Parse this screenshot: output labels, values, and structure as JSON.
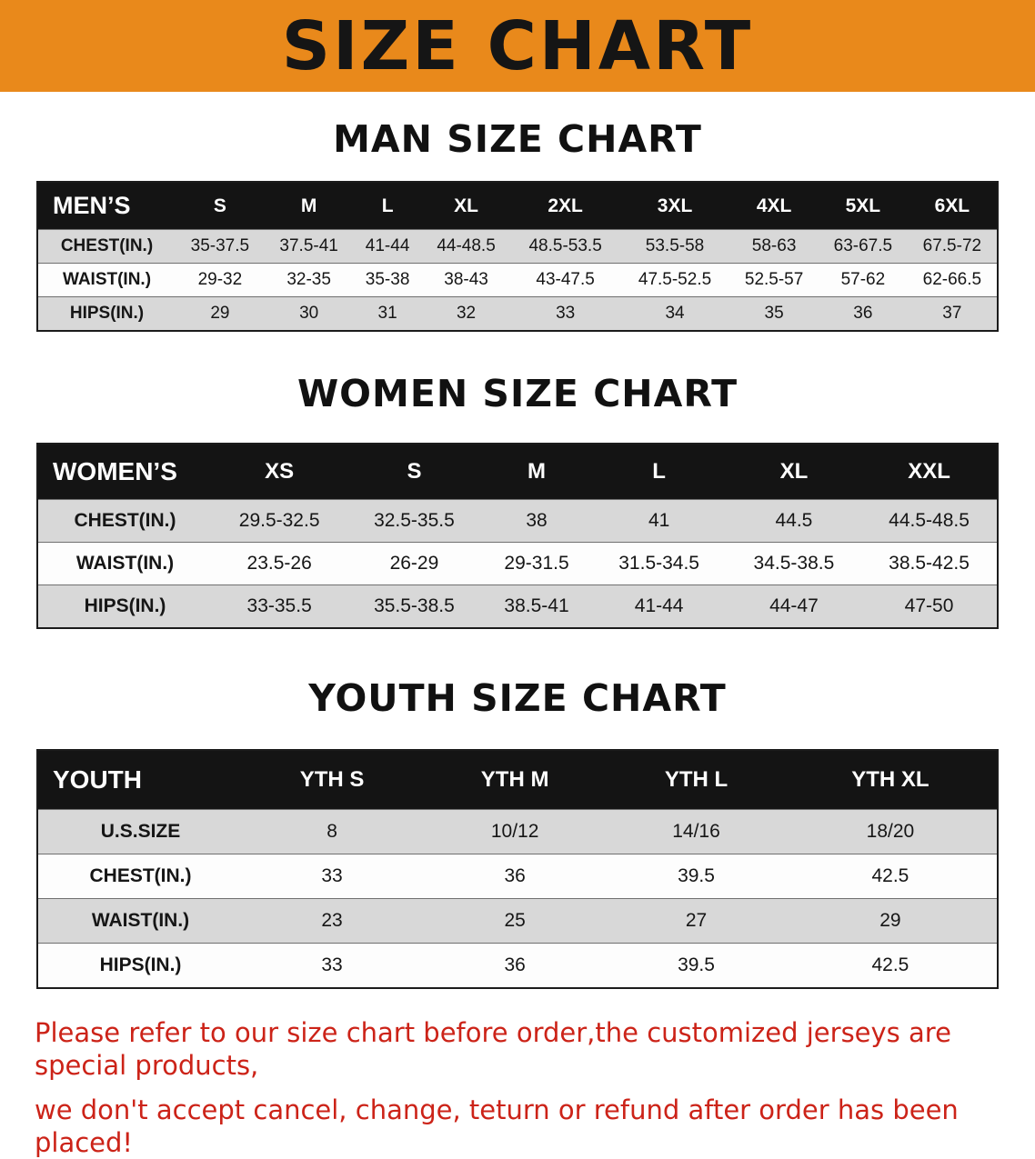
{
  "colors": {
    "banner_bg": "#e9891b",
    "table_header_bg": "#141414",
    "table_header_text": "#ffffff",
    "row_stripe": "#d8d8d8",
    "notice_text": "#cc2318"
  },
  "banner": {
    "title": "SIZE CHART"
  },
  "sections": [
    {
      "id": "men",
      "heading": "MAN SIZE CHART",
      "corner": "MEN’S",
      "columns": [
        "S",
        "M",
        "L",
        "XL",
        "2XL",
        "3XL",
        "4XL",
        "5XL",
        "6XL"
      ],
      "rows": [
        {
          "label": "CHEST(IN.)",
          "values": [
            "35-37.5",
            "37.5-41",
            "41-44",
            "44-48.5",
            "48.5-53.5",
            "53.5-58",
            "58-63",
            "63-67.5",
            "67.5-72"
          ]
        },
        {
          "label": "WAIST(IN.)",
          "values": [
            "29-32",
            "32-35",
            "35-38",
            "38-43",
            "43-47.5",
            "47.5-52.5",
            "52.5-57",
            "57-62",
            "62-66.5"
          ]
        },
        {
          "label": "HIPS(IN.)",
          "values": [
            "29",
            "30",
            "31",
            "32",
            "33",
            "34",
            "35",
            "36",
            "37"
          ]
        }
      ]
    },
    {
      "id": "women",
      "heading": "WOMEN SIZE CHART",
      "corner": "WOMEN’S",
      "columns": [
        "XS",
        "S",
        "M",
        "L",
        "XL",
        "XXL"
      ],
      "rows": [
        {
          "label": "CHEST(IN.)",
          "values": [
            "29.5-32.5",
            "32.5-35.5",
            "38",
            "41",
            "44.5",
            "44.5-48.5"
          ]
        },
        {
          "label": "WAIST(IN.)",
          "values": [
            "23.5-26",
            "26-29",
            "29-31.5",
            "31.5-34.5",
            "34.5-38.5",
            "38.5-42.5"
          ]
        },
        {
          "label": "HIPS(IN.)",
          "values": [
            "33-35.5",
            "35.5-38.5",
            "38.5-41",
            "41-44",
            "44-47",
            "47-50"
          ]
        }
      ]
    },
    {
      "id": "youth",
      "heading": "YOUTH SIZE CHART",
      "corner": "YOUTH",
      "columns": [
        "YTH S",
        "YTH M",
        "YTH L",
        "YTH XL"
      ],
      "rows": [
        {
          "label": "U.S.SIZE",
          "values": [
            "8",
            "10/12",
            "14/16",
            "18/20"
          ]
        },
        {
          "label": "CHEST(IN.)",
          "values": [
            "33",
            "36",
            "39.5",
            "42.5"
          ]
        },
        {
          "label": "WAIST(IN.)",
          "values": [
            "23",
            "25",
            "27",
            "29"
          ]
        },
        {
          "label": "HIPS(IN.)",
          "values": [
            "33",
            "36",
            "39.5",
            "42.5"
          ]
        }
      ]
    }
  ],
  "footer": {
    "line1": "Please refer to our size chart before order,the customized jerseys are special products,",
    "line2": "we don't accept cancel, change, teturn or refund after order has been placed!"
  }
}
